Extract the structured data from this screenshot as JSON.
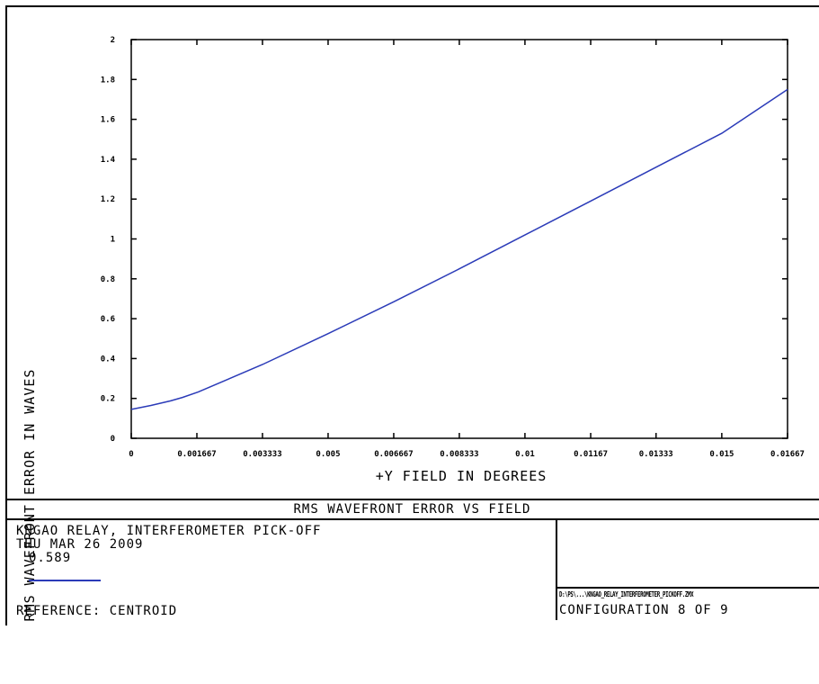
{
  "chart_data": {
    "type": "line",
    "title": "RMS WAVEFRONT ERROR VS FIELD",
    "xlabel": "+Y FIELD IN DEGREES",
    "ylabel": "RMS WAVEFRONT ERROR IN WAVES",
    "xlim": [
      0,
      0.01667
    ],
    "ylim": [
      0,
      2
    ],
    "xticks": [
      "0",
      "0.001667",
      "0.003333",
      "0.005",
      "0.006667",
      "0.008333",
      "0.01",
      "0.01167",
      "0.01333",
      "0.015",
      "0.01667"
    ],
    "yticks": [
      "0",
      "0.2",
      "0.4",
      "0.6",
      "0.8",
      "1",
      "1.2",
      "1.4",
      "1.6",
      "1.8",
      "2"
    ],
    "series": [
      {
        "x": [
          0,
          0.0005,
          0.001,
          0.0013,
          0.0017,
          0.002,
          0.0025,
          0.003333,
          0.005,
          0.006667,
          0.008333,
          0.01,
          0.01167,
          0.01333,
          0.015,
          0.01667
        ],
        "values": [
          0.145,
          0.165,
          0.188,
          0.205,
          0.232,
          0.258,
          0.3,
          0.37,
          0.525,
          0.685,
          0.85,
          1.02,
          1.19,
          1.36,
          1.53,
          1.75
        ],
        "color": "#2b3bb8"
      }
    ],
    "grid": false
  },
  "footer": {
    "heading": "RMS WAVEFRONT ERROR VS FIELD",
    "line1": "KNGAO RELAY, INTERFEROMETER PICK-OFF",
    "line2": "THU MAR 26 2009",
    "legend_value": "0.589",
    "reference": "REFERENCE: CENTROID",
    "file_path": "D:\\PS\\...\\KNGAO_RELAY_INTERFEROMETER_PICKOFF.ZMX",
    "configuration": "CONFIGURATION 8 OF 9"
  }
}
